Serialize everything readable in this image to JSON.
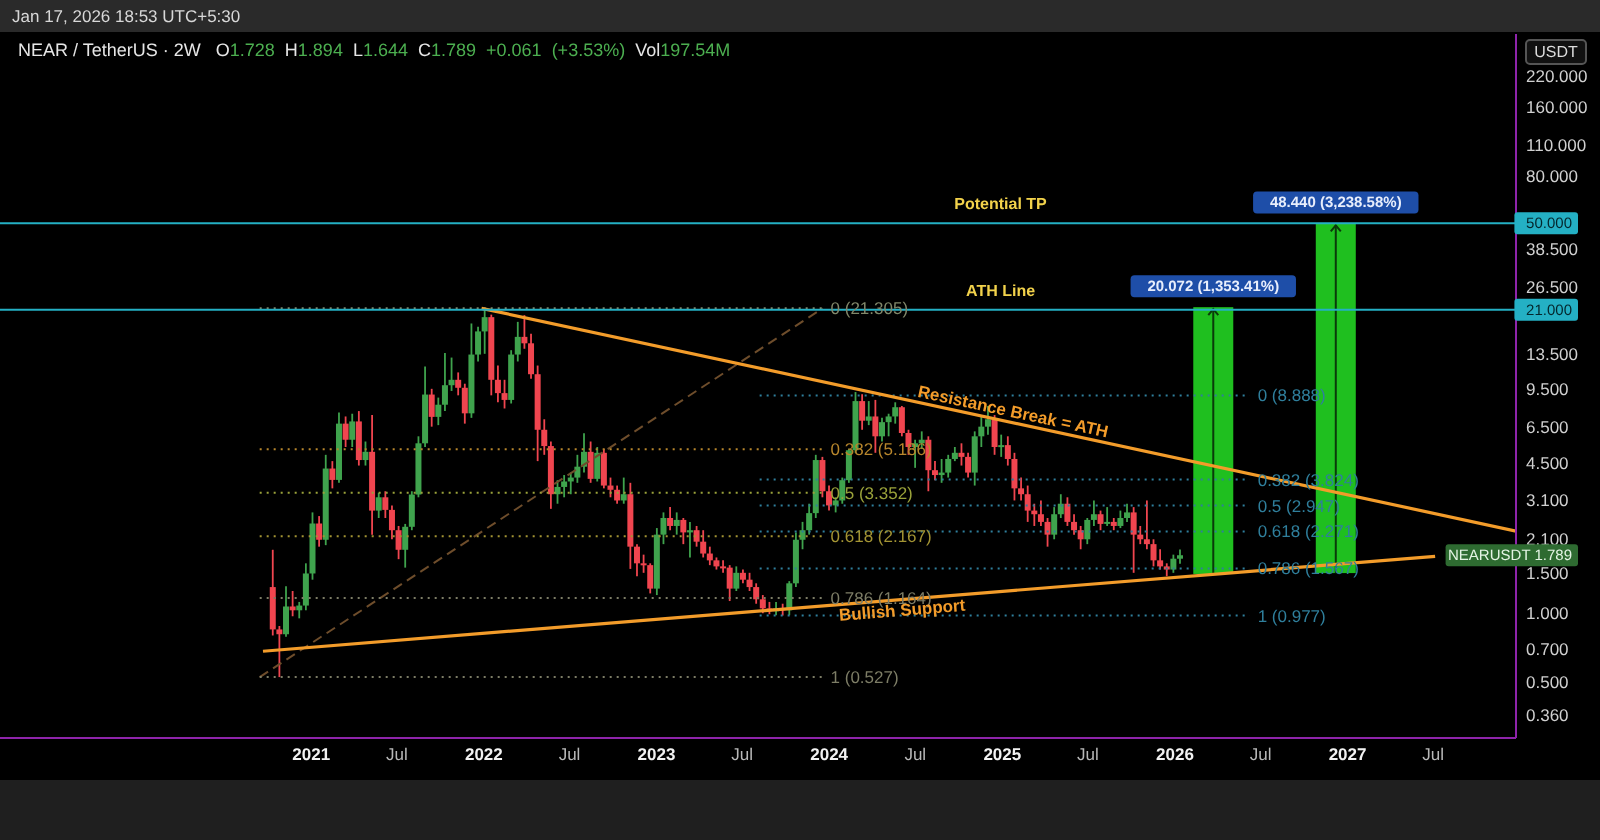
{
  "chart_data": {
    "type": "candlestick",
    "title": "NEAR / TetherUS · 2W",
    "subtitle": "O1.728 H1.894 L1.644 C1.789 +0.061 (+3.53%) Vol197.54M",
    "ylabel": "USDT",
    "annotations": [
      "Jan 17, 2026 18:53 UTC+5:30",
      {
        "text": "Resistance Break = ATH",
        "x": "2025-01-24",
        "y": 7.58
      },
      {
        "text": "Bullish Support",
        "x": "2024-06-03",
        "y": 1.035
      },
      {
        "text": "50.000",
        "y": 50
      },
      {
        "text": "21.000",
        "y": 21
      },
      "NEARUSDT 1.789"
    ],
    "x": [
      "2020-10-12",
      "2020-10-26",
      "2020-11-09",
      "2020-11-23",
      "2020-12-07",
      "2020-12-21",
      "2021-01-04",
      "2021-01-18",
      "2021-02-01",
      "2021-02-15",
      "2021-03-01",
      "2021-03-15",
      "2021-03-29",
      "2021-04-12",
      "2021-04-26",
      "2021-05-10",
      "2021-05-24",
      "2021-06-07",
      "2021-06-21",
      "2021-07-05",
      "2021-07-19",
      "2021-08-02",
      "2021-08-16",
      "2021-08-30",
      "2021-09-13",
      "2021-09-27",
      "2021-10-11",
      "2021-10-25",
      "2021-11-08",
      "2021-11-22",
      "2021-12-06",
      "2021-12-20",
      "2022-01-03",
      "2022-01-17",
      "2022-01-31",
      "2022-02-14",
      "2022-02-28",
      "2022-03-14",
      "2022-03-28",
      "2022-04-11",
      "2022-04-25",
      "2022-05-09",
      "2022-05-23",
      "2022-06-06",
      "2022-06-20",
      "2022-07-04",
      "2022-07-18",
      "2022-08-01",
      "2022-08-15",
      "2022-08-29",
      "2022-09-12",
      "2022-09-26",
      "2022-10-10",
      "2022-10-24",
      "2022-11-07",
      "2022-11-21",
      "2022-12-05",
      "2022-12-19",
      "2023-01-02",
      "2023-01-16",
      "2023-01-30",
      "2023-02-13",
      "2023-02-27",
      "2023-03-13",
      "2023-03-27",
      "2023-04-10",
      "2023-04-24",
      "2023-05-08",
      "2023-05-22",
      "2023-06-05",
      "2023-06-19",
      "2023-07-03",
      "2023-07-17",
      "2023-07-31",
      "2023-08-14",
      "2023-08-28",
      "2023-09-11",
      "2023-09-25",
      "2023-10-09",
      "2023-10-23",
      "2023-11-06",
      "2023-11-20",
      "2023-12-04",
      "2023-12-18",
      "2024-01-01",
      "2024-01-15",
      "2024-01-29",
      "2024-02-12",
      "2024-02-26",
      "2024-03-11",
      "2024-03-25",
      "2024-04-08",
      "2024-04-22",
      "2024-05-06",
      "2024-05-20",
      "2024-06-03",
      "2024-06-17",
      "2024-07-01",
      "2024-07-15",
      "2024-07-29",
      "2024-08-12",
      "2024-08-26",
      "2024-09-09",
      "2024-09-23",
      "2024-10-07",
      "2024-10-21",
      "2024-11-04",
      "2024-11-18",
      "2024-12-02",
      "2024-12-16",
      "2024-12-30",
      "2025-01-13",
      "2025-01-27",
      "2025-02-10",
      "2025-02-24",
      "2025-03-10",
      "2025-03-24",
      "2025-04-07",
      "2025-04-21",
      "2025-05-05",
      "2025-05-19",
      "2025-06-02",
      "2025-06-16",
      "2025-06-30",
      "2025-07-14",
      "2025-07-28",
      "2025-08-11",
      "2025-08-25",
      "2025-09-08",
      "2025-09-22",
      "2025-10-06",
      "2025-10-20",
      "2025-11-03",
      "2025-11-17",
      "2025-12-01",
      "2025-12-15",
      "2025-12-29",
      "2026-01-12"
    ],
    "ohlc": [
      [
        1.3,
        1.89,
        0.8,
        0.85
      ],
      [
        0.85,
        0.88,
        0.527,
        0.81
      ],
      [
        0.81,
        1.31,
        0.79,
        1.07
      ],
      [
        1.07,
        1.25,
        0.97,
        1.03
      ],
      [
        1.03,
        1.12,
        0.95,
        1.08
      ],
      [
        1.08,
        1.65,
        1.03,
        1.49
      ],
      [
        1.49,
        2.75,
        1.4,
        2.46
      ],
      [
        2.46,
        2.65,
        1.95,
        2.09
      ],
      [
        2.09,
        4.9,
        1.98,
        4.27
      ],
      [
        4.27,
        4.6,
        3.5,
        3.81
      ],
      [
        3.81,
        7.5,
        3.7,
        6.7
      ],
      [
        6.7,
        7.2,
        5.3,
        5.7
      ],
      [
        5.7,
        7.4,
        5.3,
        6.85
      ],
      [
        6.85,
        7.6,
        4.4,
        4.65
      ],
      [
        4.65,
        5.6,
        4.4,
        5.05
      ],
      [
        5.05,
        7.3,
        2.2,
        2.8
      ],
      [
        2.8,
        3.35,
        2.6,
        3.2
      ],
      [
        3.2,
        3.4,
        2.6,
        2.82
      ],
      [
        2.82,
        2.95,
        2.1,
        2.3
      ],
      [
        2.3,
        2.4,
        1.72,
        1.89
      ],
      [
        1.89,
        2.45,
        1.58,
        2.38
      ],
      [
        2.38,
        3.4,
        2.3,
        3.29
      ],
      [
        3.29,
        5.9,
        3.2,
        5.5
      ],
      [
        5.5,
        11.9,
        5.3,
        8.97
      ],
      [
        8.97,
        9.5,
        6.5,
        7.17
      ],
      [
        7.17,
        8.7,
        6.6,
        8.1
      ],
      [
        8.1,
        13.6,
        7.6,
        9.85
      ],
      [
        9.85,
        13,
        9.3,
        10.4
      ],
      [
        10.4,
        11.2,
        8.9,
        9.6
      ],
      [
        9.6,
        10,
        6.7,
        7.43
      ],
      [
        7.43,
        18.3,
        7.1,
        13.4
      ],
      [
        13.4,
        17.7,
        12.5,
        16.9
      ],
      [
        16.9,
        21.305,
        13.5,
        19.5
      ],
      [
        19.5,
        20,
        8.9,
        10.4
      ],
      [
        10.4,
        12,
        8.3,
        9.1
      ],
      [
        9.1,
        10.4,
        7.8,
        8.5
      ],
      [
        8.5,
        14,
        8.2,
        13.4
      ],
      [
        13.4,
        18.6,
        12.5,
        16
      ],
      [
        16,
        19.9,
        14.2,
        15
      ],
      [
        15,
        16.5,
        10.5,
        11
      ],
      [
        11,
        12,
        4.6,
        6.3
      ],
      [
        6.3,
        7,
        4.9,
        5.35
      ],
      [
        5.35,
        5.6,
        2.85,
        3.3
      ],
      [
        3.3,
        3.8,
        3,
        3.55
      ],
      [
        3.55,
        4,
        3.2,
        3.75
      ],
      [
        3.75,
        4.1,
        3.3,
        3.9
      ],
      [
        3.9,
        4.9,
        3.7,
        4.35
      ],
      [
        4.35,
        6.08,
        4.1,
        5.05
      ],
      [
        5.05,
        5.6,
        3.7,
        3.85
      ],
      [
        3.85,
        5.3,
        3.75,
        5
      ],
      [
        5,
        5.2,
        3.5,
        3.6
      ],
      [
        3.6,
        3.9,
        3.2,
        3.45
      ],
      [
        3.45,
        3.6,
        3,
        3.1
      ],
      [
        3.1,
        3.9,
        3,
        3.3
      ],
      [
        3.3,
        3.7,
        1.56,
        1.95
      ],
      [
        1.95,
        2,
        1.45,
        1.65
      ],
      [
        1.65,
        1.8,
        1.5,
        1.62
      ],
      [
        1.62,
        1.65,
        1.22,
        1.28
      ],
      [
        1.28,
        2.35,
        1.2,
        2.2
      ],
      [
        2.2,
        2.75,
        2,
        2.6
      ],
      [
        2.6,
        2.9,
        2.3,
        2.4
      ],
      [
        2.4,
        2.75,
        2.2,
        2.55
      ],
      [
        2.55,
        2.6,
        2,
        2.25
      ],
      [
        2.25,
        2.5,
        1.75,
        2.3
      ],
      [
        2.3,
        2.4,
        1.95,
        2.05
      ],
      [
        2.05,
        2.3,
        1.75,
        1.82
      ],
      [
        1.82,
        1.95,
        1.62,
        1.7
      ],
      [
        1.7,
        1.75,
        1.55,
        1.6
      ],
      [
        1.6,
        1.7,
        1.5,
        1.58
      ],
      [
        1.58,
        1.62,
        1.13,
        1.28
      ],
      [
        1.28,
        1.6,
        1.25,
        1.5
      ],
      [
        1.5,
        1.55,
        1.35,
        1.4
      ],
      [
        1.4,
        1.5,
        1.25,
        1.3
      ],
      [
        1.3,
        1.35,
        1.1,
        1.15
      ],
      [
        1.15,
        1.2,
        1,
        1.05
      ],
      [
        1.05,
        1.12,
        0.99,
        1.02
      ],
      [
        1.02,
        1.12,
        0.98,
        1.05
      ],
      [
        1.05,
        1.1,
        0.977,
        1.03
      ],
      [
        1.03,
        1.38,
        0.98,
        1.35
      ],
      [
        1.35,
        2.25,
        1.3,
        2.09
      ],
      [
        2.09,
        2.5,
        1.9,
        2.3
      ],
      [
        2.3,
        3,
        2.2,
        2.73
      ],
      [
        2.73,
        4.9,
        2.6,
        4.65
      ],
      [
        4.65,
        4.8,
        3.2,
        3.4
      ],
      [
        3.4,
        3.6,
        2.8,
        2.95
      ],
      [
        2.95,
        3.2,
        2.75,
        3.1
      ],
      [
        3.1,
        3.9,
        3,
        3.8
      ],
      [
        3.8,
        5.2,
        3.7,
        5.13
      ],
      [
        5.13,
        9.2,
        5,
        8.4
      ],
      [
        8.4,
        9,
        6.3,
        6.9
      ],
      [
        6.9,
        8.4,
        6.6,
        7.2
      ],
      [
        7.2,
        8.5,
        5,
        5.9
      ],
      [
        5.9,
        7.1,
        5.6,
        6.8
      ],
      [
        6.8,
        7.4,
        5.9,
        7.2
      ],
      [
        7.2,
        8.3,
        6.7,
        7.9
      ],
      [
        7.9,
        8,
        5.9,
        6.1
      ],
      [
        6.1,
        6.3,
        4.9,
        5.3
      ],
      [
        5.3,
        5.7,
        4.3,
        5.5
      ],
      [
        5.5,
        6.2,
        5.2,
        5.7
      ],
      [
        5.7,
        5.9,
        3.4,
        4.2
      ],
      [
        4.2,
        4.6,
        3.8,
        4
      ],
      [
        4,
        4.7,
        3.7,
        4.1
      ],
      [
        4.1,
        4.9,
        3.9,
        4.7
      ],
      [
        4.7,
        5.3,
        4.6,
        5
      ],
      [
        5,
        5.5,
        4.4,
        4.8
      ],
      [
        4.8,
        5,
        3.9,
        4.1
      ],
      [
        4.1,
        6.2,
        3.6,
        5.9
      ],
      [
        5.9,
        7.2,
        5.3,
        6.5
      ],
      [
        6.5,
        8,
        6,
        7
      ],
      [
        7,
        7.3,
        4.9,
        5.3
      ],
      [
        5.3,
        6,
        4.8,
        5.4
      ],
      [
        5.4,
        5.9,
        4.4,
        4.7
      ],
      [
        4.7,
        5,
        3.1,
        3.5
      ],
      [
        3.5,
        3.9,
        3.1,
        3.3
      ],
      [
        3.3,
        3.6,
        2.5,
        2.8
      ],
      [
        2.8,
        3,
        2.4,
        2.7
      ],
      [
        2.7,
        3.1,
        2.4,
        2.5
      ],
      [
        2.5,
        2.6,
        1.95,
        2.2
      ],
      [
        2.2,
        2.9,
        2.1,
        2.7
      ],
      [
        2.7,
        3.3,
        2.6,
        3
      ],
      [
        3,
        3.2,
        2.4,
        2.5
      ],
      [
        2.5,
        2.7,
        2.2,
        2.3
      ],
      [
        2.3,
        2.4,
        1.9,
        2.1
      ],
      [
        2.1,
        2.6,
        2,
        2.55
      ],
      [
        2.55,
        3.1,
        2.4,
        2.7
      ],
      [
        2.7,
        2.8,
        2.3,
        2.45
      ],
      [
        2.45,
        2.9,
        2.4,
        2.5
      ],
      [
        2.5,
        2.6,
        2.3,
        2.4
      ],
      [
        2.4,
        2.8,
        2.35,
        2.6
      ],
      [
        2.6,
        3,
        2.5,
        2.75
      ],
      [
        2.75,
        2.9,
        1.5,
        2.2
      ],
      [
        2.2,
        2.4,
        2,
        2.1
      ],
      [
        2.1,
        3.1,
        1.9,
        2
      ],
      [
        2,
        2.1,
        1.6,
        1.7
      ],
      [
        1.7,
        1.9,
        1.55,
        1.6
      ],
      [
        1.6,
        1.65,
        1.45,
        1.55
      ],
      [
        1.55,
        1.8,
        1.5,
        1.728
      ],
      [
        1.728,
        1.894,
        1.644,
        1.789
      ]
    ],
    "series": [
      {
        "type": "line",
        "color": "#6e4d2b",
        "line_style": "dashed",
        "x": [
          "2020-09-14",
          "2023-12-18"
        ],
        "values": [
          0.527,
          21.305
        ]
      },
      {
        "type": "line",
        "name": "0 (21.305)",
        "color": "#80876a",
        "line_style": "dotted",
        "x": [
          "2020-09-14",
          "2023-12-18"
        ],
        "values": [
          21.305,
          21.305
        ]
      },
      {
        "type": "line",
        "name": "0.382 (5.186)",
        "color": "#b7862c",
        "line_style": "dotted",
        "x": [
          "2020-09-14",
          "2023-12-18"
        ],
        "values": [
          5.186,
          5.186
        ]
      },
      {
        "type": "line",
        "name": "0.5 (3.352)",
        "color": "#9aa23a",
        "line_style": "dotted",
        "x": [
          "2020-09-14",
          "2023-12-18"
        ],
        "values": [
          3.352,
          3.352
        ]
      },
      {
        "type": "line",
        "name": "0.618 (2.167)",
        "color": "#a39433",
        "line_style": "dotted",
        "x": [
          "2020-09-14",
          "2023-12-18"
        ],
        "values": [
          2.167,
          2.167
        ]
      },
      {
        "type": "line",
        "name": "0.786 (1.164)",
        "color": "#7d7d66",
        "line_style": "dotted",
        "x": [
          "2020-09-14",
          "2023-12-18"
        ],
        "values": [
          1.164,
          1.164
        ]
      },
      {
        "type": "line",
        "name": "1 (0.527)",
        "color": "#7d7d66",
        "line_style": "dotted",
        "x": [
          "2020-09-14",
          "2023-12-18"
        ],
        "values": [
          0.527,
          0.527
        ]
      },
      {
        "type": "line",
        "name": "0 (8.888)",
        "color": "#2f7f9c",
        "line_style": "dotted",
        "x": [
          "2023-08-07",
          "2026-06-08"
        ],
        "values": [
          8.888,
          8.888
        ]
      },
      {
        "type": "line",
        "name": "0.382 (3.824)",
        "color": "#2f7f9c",
        "line_style": "dotted",
        "x": [
          "2023-08-07",
          "2026-06-08"
        ],
        "values": [
          3.824,
          3.824
        ]
      },
      {
        "type": "line",
        "name": "0.5 (2.947)",
        "color": "#2f7f9c",
        "line_style": "dotted",
        "x": [
          "2023-08-07",
          "2026-06-08"
        ],
        "values": [
          2.947,
          2.947
        ]
      },
      {
        "type": "line",
        "name": "0.618 (2.271)",
        "color": "#2f7f9c",
        "line_style": "dotted",
        "x": [
          "2023-08-07",
          "2026-06-08"
        ],
        "values": [
          2.271,
          2.271
        ]
      },
      {
        "type": "line",
        "name": "0.786 (1.567)",
        "color": "#2f7f9c",
        "line_style": "dotted",
        "x": [
          "2023-08-07",
          "2026-06-08"
        ],
        "values": [
          1.567,
          1.567
        ]
      },
      {
        "type": "line",
        "name": "1 (0.977)",
        "color": "#2f7f9c",
        "line_style": "dotted",
        "x": [
          "2023-08-07",
          "2026-06-08"
        ],
        "values": [
          0.977,
          0.977
        ]
      },
      {
        "type": "line",
        "color": "#f39c2a",
        "line_style": "solid",
        "x": [
          "2021-12-27",
          "2027-12-23"
        ],
        "values": [
          21.3,
          2.28
        ]
      },
      {
        "type": "line",
        "color": "#f39c2a",
        "line_style": "solid",
        "x": [
          "2020-09-21",
          "2027-07-05"
        ],
        "values": [
          0.683,
          1.77
        ]
      },
      {
        "type": "bar",
        "color": "#1fbf1f",
        "x": [
          "2026-03-23",
          "2026-12-07"
        ],
        "values": [
          20.072,
          48.44
        ],
        "base": [
          1.483,
          1.496
        ],
        "value_labels": [
          "20.072 (1,353.41%)",
          "48.440 (3,238.58%)"
        ]
      }
    ],
    "ref_lines": [
      {
        "axis": "y",
        "value": 50,
        "label": "Potential TP",
        "color": "#24b0c4"
      },
      {
        "axis": "y",
        "value": 21,
        "label": "ATH Line",
        "color": "#24b0c4"
      }
    ],
    "xlim": [
      "2019-03-15",
      "2027-12-23"
    ],
    "xticks": [
      {
        "value": "2021-01-01",
        "label": "2021"
      },
      {
        "value": "2021-07-01",
        "label": "Jul"
      },
      {
        "value": "2022-01-01",
        "label": "2022"
      },
      {
        "value": "2022-07-01",
        "label": "Jul"
      },
      {
        "value": "2023-01-01",
        "label": "2023"
      },
      {
        "value": "2023-07-01",
        "label": "Jul"
      },
      {
        "value": "2024-01-01",
        "label": "2024"
      },
      {
        "value": "2024-07-01",
        "label": "Jul"
      },
      {
        "value": "2025-01-01",
        "label": "2025"
      },
      {
        "value": "2025-07-01",
        "label": "Jul"
      },
      {
        "value": "2026-01-01",
        "label": "2026"
      },
      {
        "value": "2026-07-01",
        "label": "Jul"
      },
      {
        "value": "2027-01-01",
        "label": "2027"
      },
      {
        "value": "2027-07-01",
        "label": "Jul"
      }
    ],
    "ylim": [
      0.286,
      334
    ],
    "yticks": [
      {
        "value": 0.36,
        "label": "0.360"
      },
      {
        "value": 0.5,
        "label": "0.500"
      },
      {
        "value": 0.7,
        "label": "0.700"
      },
      {
        "value": 1,
        "label": "1.000"
      },
      {
        "value": 1.5,
        "label": "1.500"
      },
      {
        "value": 2.1,
        "label": "2.100"
      },
      {
        "value": 3.1,
        "label": "3.100"
      },
      {
        "value": 4.5,
        "label": "4.500"
      },
      {
        "value": 6.5,
        "label": "6.500"
      },
      {
        "value": 9.5,
        "label": "9.500"
      },
      {
        "value": 13.5,
        "label": "13.500"
      },
      {
        "value": 26.5,
        "label": "26.500"
      },
      {
        "value": 38.5,
        "label": "38.500"
      },
      {
        "value": 80,
        "label": "80.000"
      },
      {
        "value": 110,
        "label": "110.000"
      },
      {
        "value": 160,
        "label": "160.000"
      },
      {
        "value": 220,
        "label": "220.000"
      }
    ],
    "log": true
  }
}
